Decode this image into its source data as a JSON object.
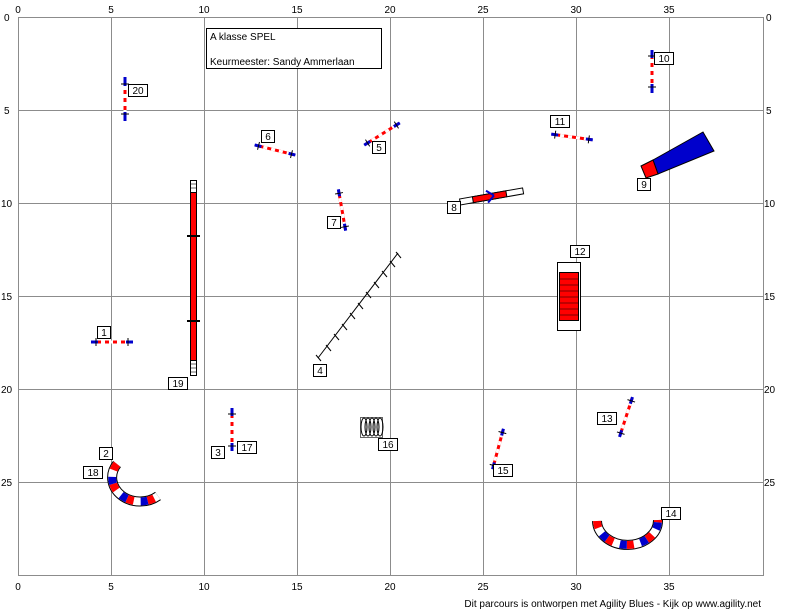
{
  "title": "A klasse SPEL",
  "judge": "Keurmeester: Sandy Ammerlaan",
  "credit": "Dit parcours is ontworpen met Agility Blues - Kijk op www.agility.net",
  "axes": {
    "x_ticks": [
      "0",
      "5",
      "10",
      "15",
      "20",
      "25",
      "30",
      "35"
    ],
    "y_ticks": [
      "0",
      "5",
      "10",
      "15",
      "20",
      "25"
    ]
  },
  "colors": {
    "red": "#ff0000",
    "blue": "#0000cc",
    "white": "#ffffff",
    "black": "#000000",
    "grid": "#8c8c8c"
  },
  "obstacles": [
    {
      "num": "1",
      "type": "jump"
    },
    {
      "num": "2",
      "type": "tunnel"
    },
    {
      "num": "3",
      "type": "jump"
    },
    {
      "num": "4",
      "type": "weave"
    },
    {
      "num": "5",
      "type": "jump"
    },
    {
      "num": "6",
      "type": "jump"
    },
    {
      "num": "7",
      "type": "jump"
    },
    {
      "num": "8",
      "type": "seesaw"
    },
    {
      "num": "9",
      "type": "chute"
    },
    {
      "num": "10",
      "type": "jump"
    },
    {
      "num": "11",
      "type": "jump"
    },
    {
      "num": "12",
      "type": "table"
    },
    {
      "num": "13",
      "type": "jump"
    },
    {
      "num": "14",
      "type": "tunnel"
    },
    {
      "num": "15",
      "type": "jump"
    },
    {
      "num": "16",
      "type": "tyre"
    },
    {
      "num": "17",
      "type": "jump"
    },
    {
      "num": "18",
      "type": "tunnel"
    },
    {
      "num": "19",
      "type": "dogwalk"
    },
    {
      "num": "20",
      "type": "jump"
    }
  ]
}
